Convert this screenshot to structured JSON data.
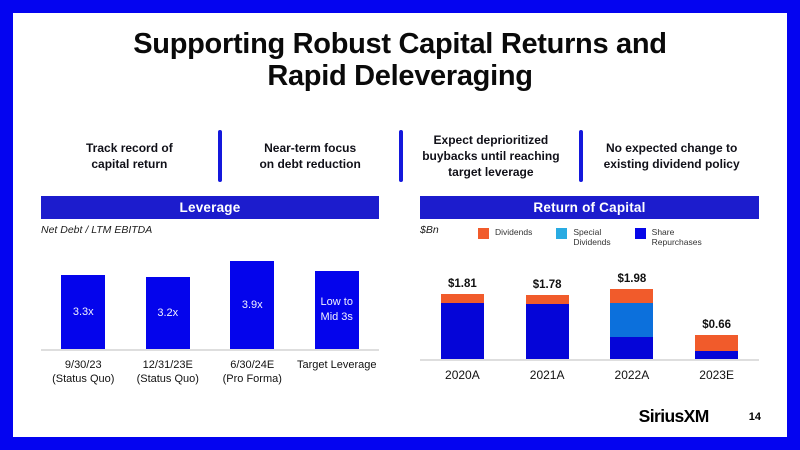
{
  "slide": {
    "title": "Supporting Robust Capital Returns and\nRapid Deleveraging",
    "logo": "SiriusXM",
    "page_number": "14"
  },
  "key_points": [
    "Track record of\ncapital return",
    "Near-term focus\non debt reduction",
    "Expect deprioritized\nbuybacks until reaching\ntarget leverage",
    "No expected change to\nexisting dividend policy"
  ],
  "sections": {
    "leverage": {
      "header": "Leverage",
      "subtitle": "Net Debt / LTM EBITDA"
    },
    "return_of_capital": {
      "header": "Return of Capital",
      "unit": "$Bn",
      "legend": [
        {
          "label": "Dividends",
          "color": "#F15B2B"
        },
        {
          "label": "Special\nDividends",
          "color": "#29ABE2"
        },
        {
          "label": "Share\nRepurchases",
          "color": "#0707E8"
        }
      ]
    }
  },
  "colors": {
    "border_blue": "#0404F0",
    "header_bar_blue": "#1C1CCD",
    "divider_blue": "#1418DC",
    "baseline_gray": "#DEDEDE"
  },
  "chart_data": [
    {
      "type": "bar",
      "title": "Leverage",
      "ylabel": "Net Debt / LTM EBITDA (x)",
      "categories": [
        "9/30/23\n(Status Quo)",
        "12/31/23E\n(Status Quo)",
        "6/30/24E\n(Pro Forma)",
        "Target Leverage"
      ],
      "values": [
        3.3,
        3.2,
        3.9,
        3.45
      ],
      "bar_labels": [
        "3.3x",
        "3.2x",
        "3.9x",
        "Low to\nMid 3s"
      ],
      "bar_color": "#0404EC",
      "grid": false,
      "note": "Fourth bar represents qualitative target of low-to-mid 3s"
    },
    {
      "type": "stacked-bar",
      "title": "Return of Capital",
      "ylabel": "$Bn",
      "categories": [
        "2020A",
        "2021A",
        "2022A",
        "2023E"
      ],
      "series": [
        {
          "name": "Share Repurchases",
          "color": "#0505D8",
          "values": [
            1.57,
            1.54,
            0.62,
            0.22
          ]
        },
        {
          "name": "Special Dividends",
          "color": "#0C70DC",
          "values": [
            0,
            0,
            0.97,
            0
          ]
        },
        {
          "name": "Dividends",
          "color": "#F15B2B",
          "values": [
            0.24,
            0.24,
            0.39,
            0.44
          ]
        }
      ],
      "totals": [
        "$1.81",
        "$1.78",
        "$1.98",
        "$0.66"
      ],
      "grid": false,
      "legend_position": "top"
    }
  ]
}
